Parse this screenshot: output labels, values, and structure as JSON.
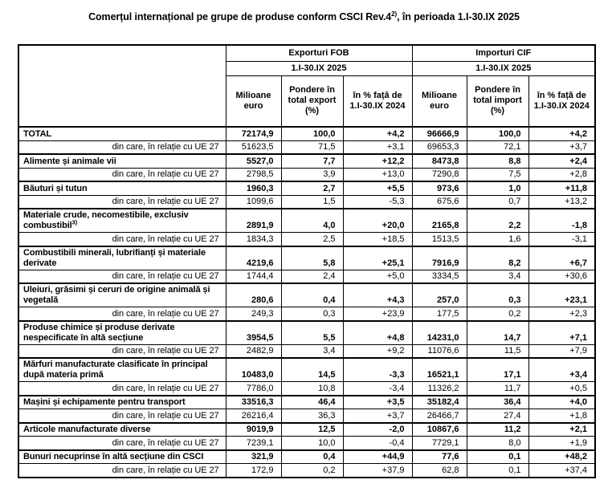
{
  "page_title": {
    "prefix": "Comerțul internațional pe grupe de produse conform CSCI Rev.4",
    "superscript": "2)",
    "suffix": ", în perioada 1.I-30.IX 2025"
  },
  "table": {
    "export_group": {
      "title": "Exporturi FOB",
      "period": "1.I-30.IX 2025",
      "columns": [
        "Milioane euro",
        "Pondere în total export (%)",
        "în % față de 1.I-30.IX 2024"
      ]
    },
    "import_group": {
      "title": "Importuri CIF",
      "period": "1.I-30.IX 2025",
      "columns": [
        "Milioane euro",
        "Pondere în total import (%)",
        "în % față de 1.I-30.IX 2024"
      ]
    },
    "rows": [
      {
        "type": "group",
        "label": "TOTAL",
        "values": [
          "72174,9",
          "100,0",
          "+4,2",
          "96666,9",
          "100,0",
          "+4,2"
        ]
      },
      {
        "type": "sub",
        "label": "din care, în relație cu UE 27",
        "values": [
          "51623,5",
          "71,5",
          "+3,1",
          "69653,3",
          "72,1",
          "+3,7"
        ]
      },
      {
        "type": "group",
        "label": "Alimente și animale vii",
        "values": [
          "5527,0",
          "7,7",
          "+12,2",
          "8473,8",
          "8,8",
          "+2,4"
        ]
      },
      {
        "type": "sub",
        "label": "din care, în relație cu UE 27",
        "values": [
          "2798,5",
          "3,9",
          "+13,0",
          "7290,8",
          "7,5",
          "+2,8"
        ]
      },
      {
        "type": "group",
        "label": "Băuturi și tutun",
        "values": [
          "1960,3",
          "2,7",
          "+5,5",
          "973,6",
          "1,0",
          "+11,8"
        ]
      },
      {
        "type": "sub",
        "label": "din care, în relație cu UE 27",
        "values": [
          "1099,6",
          "1,5",
          "-5,3",
          "675,6",
          "0,7",
          "+13,2"
        ]
      },
      {
        "type": "group",
        "label": "Materiale crude, necomestibile, exclusiv combustibil",
        "superscript": "3)",
        "values": [
          "2891,9",
          "4,0",
          "+20,0",
          "2165,8",
          "2,2",
          "-1,8"
        ]
      },
      {
        "type": "sub",
        "label": "din care, în relație cu UE 27",
        "values": [
          "1834,3",
          "2,5",
          "+18,5",
          "1513,5",
          "1,6",
          "-3,1"
        ]
      },
      {
        "type": "group",
        "label": "Combustibili minerali, lubrifianți și materiale derivate",
        "values": [
          "4219,6",
          "5,8",
          "+25,1",
          "7916,9",
          "8,2",
          "+6,7"
        ]
      },
      {
        "type": "sub",
        "label": "din care, în relație cu UE 27",
        "values": [
          "1744,4",
          "2,4",
          "+5,0",
          "3334,5",
          "3,4",
          "+30,6"
        ]
      },
      {
        "type": "group",
        "label": "Uleiuri, grăsimi și ceruri de origine animală și vegetală",
        "values": [
          "280,6",
          "0,4",
          "+4,3",
          "257,0",
          "0,3",
          "+23,1"
        ]
      },
      {
        "type": "sub",
        "label": "din care, în relație cu UE 27",
        "values": [
          "249,3",
          "0,3",
          "+23,9",
          "177,5",
          "0,2",
          "+2,3"
        ]
      },
      {
        "type": "group",
        "label": "Produse chimice și produse derivate nespecificate în altă secțiune",
        "values": [
          "3954,5",
          "5,5",
          "+4,8",
          "14231,0",
          "14,7",
          "+7,1"
        ]
      },
      {
        "type": "sub",
        "label": "din care, în relație cu UE 27",
        "values": [
          "2482,9",
          "3,4",
          "+9,2",
          "11076,6",
          "11,5",
          "+7,9"
        ]
      },
      {
        "type": "group",
        "label": "Mărfuri manufacturate clasificate în principal după materia primă",
        "values": [
          "10483,0",
          "14,5",
          "-3,3",
          "16521,1",
          "17,1",
          "+3,4"
        ]
      },
      {
        "type": "sub",
        "label": "din care, în relație cu UE 27",
        "values": [
          "7786,0",
          "10,8",
          "-3,4",
          "11326,2",
          "11,7",
          "+0,5"
        ]
      },
      {
        "type": "group",
        "label": "Mașini și echipamente pentru transport",
        "values": [
          "33516,3",
          "46,4",
          "+3,5",
          "35182,4",
          "36,4",
          "+4,0"
        ]
      },
      {
        "type": "sub",
        "label": "din care, în relație cu UE 27",
        "values": [
          "26216,4",
          "36,3",
          "+3,7",
          "26466,7",
          "27,4",
          "+1,8"
        ]
      },
      {
        "type": "group",
        "label": "Articole manufacturate diverse",
        "values": [
          "9019,9",
          "12,5",
          "-2,0",
          "10867,6",
          "11,2",
          "+2,1"
        ]
      },
      {
        "type": "sub",
        "label": "din care, în relație cu UE 27",
        "values": [
          "7239,1",
          "10,0",
          "-0,4",
          "7729,1",
          "8,0",
          "+1,9"
        ]
      },
      {
        "type": "group",
        "label": "Bunuri necuprinse în altă secțiune din CSCI",
        "values": [
          "321,9",
          "0,4",
          "+44,9",
          "77,6",
          "0,1",
          "+48,2"
        ]
      },
      {
        "type": "sub",
        "label": "din care, în relație cu UE 27",
        "values": [
          "172,9",
          "0,2",
          "+37,9",
          "62,8",
          "0,1",
          "+37,4"
        ]
      }
    ]
  }
}
